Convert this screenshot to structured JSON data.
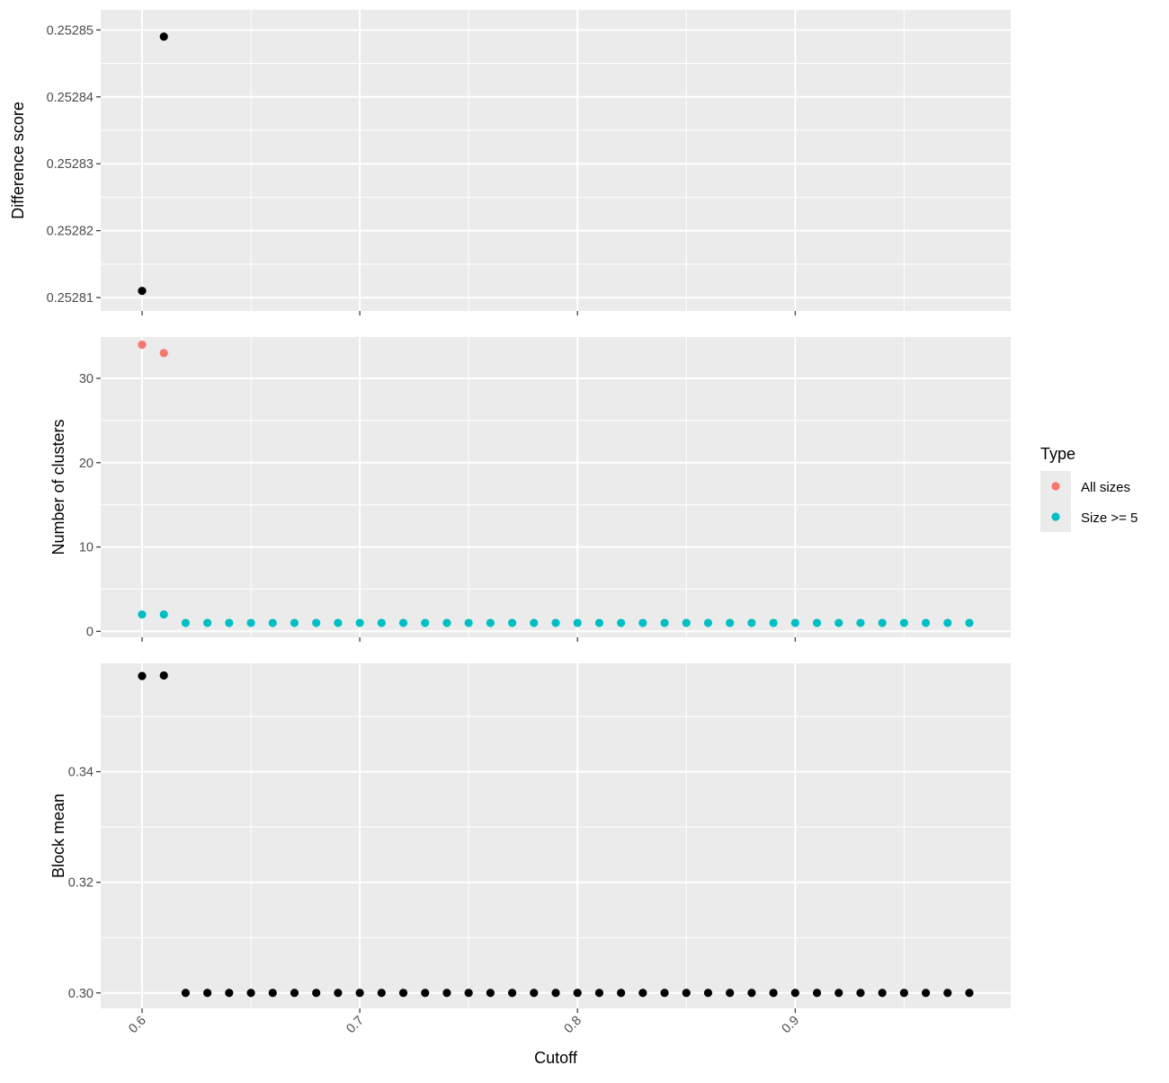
{
  "chart_data": {
    "type": "scatter",
    "xlabel": "Cutoff",
    "x_ticks": [
      "0.6",
      "0.7",
      "0.8",
      "0.9"
    ],
    "xlim": [
      0.581,
      0.999
    ],
    "panels": [
      {
        "ylabel": "Difference score",
        "y_ticks": [
          "0.25281",
          "0.25282",
          "0.25283",
          "0.25284",
          "0.25285"
        ],
        "ylim": [
          0.252808,
          0.252853
        ],
        "series": [
          {
            "color": "#000000",
            "x": [
              0.6,
              0.61
            ],
            "y": [
              0.252811,
              0.252849
            ]
          }
        ]
      },
      {
        "ylabel": "Number of clusters",
        "y_ticks": [
          "0",
          "10",
          "20",
          "30"
        ],
        "ylim": [
          -0.7,
          34.9
        ],
        "series": [
          {
            "name": "All sizes",
            "color": "#F8766D",
            "x": [
              0.6,
              0.61
            ],
            "y": [
              34,
              33
            ]
          },
          {
            "name": "Size >= 5",
            "color": "#00BFC4",
            "x": [
              0.6,
              0.61,
              0.62,
              0.63,
              0.64,
              0.65,
              0.66,
              0.67,
              0.68,
              0.69,
              0.7,
              0.71,
              0.72,
              0.73,
              0.74,
              0.75,
              0.76,
              0.77,
              0.78,
              0.79,
              0.8,
              0.81,
              0.82,
              0.83,
              0.84,
              0.85,
              0.86,
              0.87,
              0.88,
              0.89,
              0.9,
              0.91,
              0.92,
              0.93,
              0.94,
              0.95,
              0.96,
              0.97,
              0.98
            ],
            "y": [
              2,
              2,
              1,
              1,
              1,
              1,
              1,
              1,
              1,
              1,
              1,
              1,
              1,
              1,
              1,
              1,
              1,
              1,
              1,
              1,
              1,
              1,
              1,
              1,
              1,
              1,
              1,
              1,
              1,
              1,
              1,
              1,
              1,
              1,
              1,
              1,
              1,
              1,
              1
            ]
          }
        ]
      },
      {
        "ylabel": "Block mean",
        "y_ticks": [
          "0.30",
          "0.32",
          "0.34"
        ],
        "ylim": [
          0.2972,
          0.3596
        ],
        "series": [
          {
            "color": "#000000",
            "x": [
              0.6,
              0.61,
              0.62,
              0.63,
              0.64,
              0.65,
              0.66,
              0.67,
              0.68,
              0.69,
              0.7,
              0.71,
              0.72,
              0.73,
              0.74,
              0.75,
              0.76,
              0.77,
              0.78,
              0.79,
              0.8,
              0.81,
              0.82,
              0.83,
              0.84,
              0.85,
              0.86,
              0.87,
              0.88,
              0.89,
              0.9,
              0.91,
              0.92,
              0.93,
              0.94,
              0.95,
              0.96,
              0.97,
              0.98
            ],
            "y": [
              0.3573,
              0.3574,
              0.3,
              0.3,
              0.3,
              0.3,
              0.3,
              0.3,
              0.3,
              0.3,
              0.3,
              0.3,
              0.3,
              0.3,
              0.3,
              0.3,
              0.3,
              0.3,
              0.3,
              0.3,
              0.3,
              0.3,
              0.3,
              0.3,
              0.3,
              0.3,
              0.3,
              0.3,
              0.3,
              0.3,
              0.3,
              0.3,
              0.3,
              0.3,
              0.3,
              0.3,
              0.3,
              0.3,
              0.3
            ]
          }
        ]
      }
    ],
    "legend": {
      "title": "Type",
      "position": "right",
      "entries": [
        {
          "label": "All sizes",
          "color": "#F8766D"
        },
        {
          "label": "Size >= 5",
          "color": "#00BFC4"
        }
      ]
    },
    "grid": true,
    "panel_background": "#EBEBEB"
  }
}
